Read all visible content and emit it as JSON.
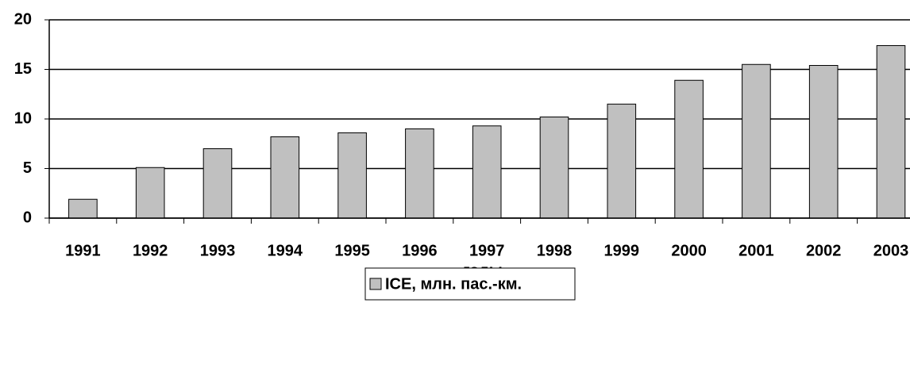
{
  "chart_data": {
    "type": "bar",
    "x_label": "годы",
    "categories": [
      "1991",
      "1992",
      "1993",
      "1994",
      "1995",
      "1996",
      "1997",
      "1998",
      "1999",
      "2000",
      "2001",
      "2002",
      "2003"
    ],
    "series": [
      {
        "name": "ICE, млн. пас.-км.",
        "color": "#c0c0c0",
        "values": [
          1.9,
          5.1,
          7.0,
          8.2,
          8.6,
          9.0,
          9.3,
          10.2,
          11.5,
          13.9,
          15.5,
          15.4,
          17.4
        ]
      }
    ],
    "ylim": [
      0,
      20
    ],
    "yticks": [
      0,
      5,
      10,
      15,
      20
    ],
    "grid": true
  }
}
